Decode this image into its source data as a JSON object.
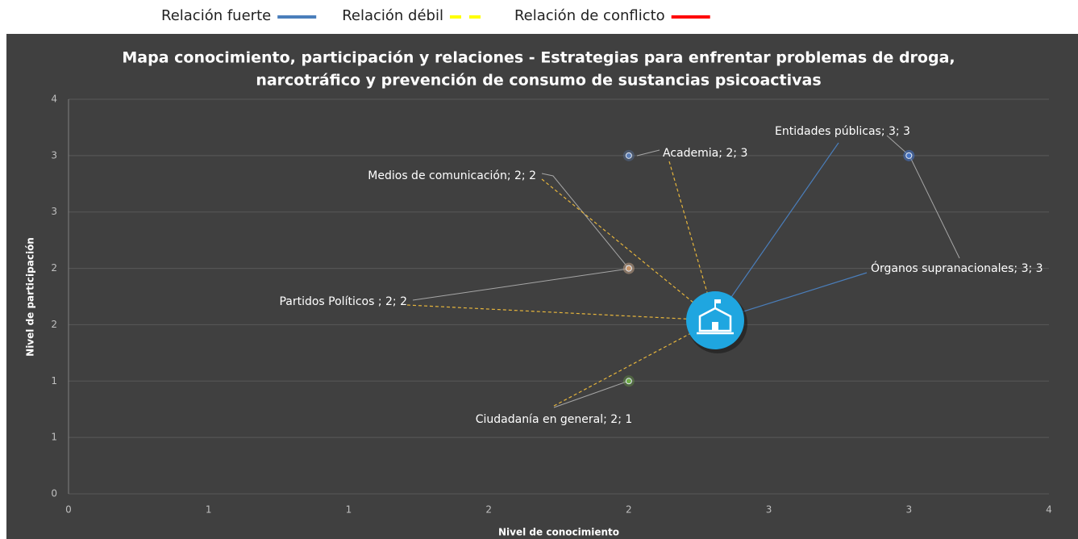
{
  "chart_data": {
    "type": "scatter",
    "title": "Mapa conocimiento, participación y relaciones  - Estrategias para enfrentar problemas de droga,",
    "subtitle": "narcotráfico y prevención de consumo de sustancias psicoactivas",
    "x_label": "Nivel de conocimiento",
    "y_label": "Nivel de participación",
    "relation_legend": [
      {
        "label": "Relación fuerte",
        "color": "#4a7ebb",
        "style": "solid"
      },
      {
        "label": "Relación débil",
        "color": "#ffff00",
        "style": "dashed"
      },
      {
        "label": "Relación de conflicto",
        "color": "#ff0000",
        "style": "solid"
      }
    ],
    "xlim": [
      0,
      3.5
    ],
    "ylim": [
      0,
      3.5
    ],
    "xticks": [
      0,
      {
        "value": 0.5,
        "label": "1"
      },
      1,
      {
        "value": 1.5,
        "label": "2"
      },
      2,
      {
        "value": 2.5,
        "label": "3"
      },
      3,
      {
        "value": 3.5,
        "label": "4"
      }
    ],
    "yticks": [
      0,
      {
        "value": 0.5,
        "label": "1"
      },
      1,
      {
        "value": 1.5,
        "label": "2"
      },
      2,
      {
        "value": 2.5,
        "label": "3"
      },
      3,
      {
        "value": 3.5,
        "label": "4"
      }
    ],
    "grid": true,
    "series": [
      {
        "name": "Academia",
        "color": "#5b7db5",
        "x": [
          2
        ],
        "values": [
          3
        ],
        "value_labels": [
          "Academia; 2; 3"
        ]
      },
      {
        "name": "Entidades públicas",
        "color": "#4472c4",
        "x": [
          3
        ],
        "values": [
          3
        ],
        "value_labels": [
          "Entidades públicas; 3; 3"
        ]
      },
      {
        "name": "Medios de comunicación",
        "color": "#a5a5a5",
        "x": [
          2
        ],
        "values": [
          2
        ],
        "value_labels": [
          "Medios de comunicación; 2; 2"
        ]
      },
      {
        "name": "Partidos Políticos",
        "color": "#c8956a",
        "x": [
          2
        ],
        "values": [
          2
        ],
        "value_labels": [
          "Partidos Políticos ; 2; 2"
        ]
      },
      {
        "name": "Ciudadanía en general",
        "color": "#70ad47",
        "x": [
          2
        ],
        "values": [
          1
        ],
        "value_labels": [
          "Ciudadanía en general; 2; 1"
        ]
      },
      {
        "name": "Órganos supranacionales",
        "color": "#4472c4",
        "x": [
          3
        ],
        "values": [
          3
        ],
        "value_labels": [
          "Órganos supranacionales; 3; 3"
        ]
      }
    ]
  }
}
